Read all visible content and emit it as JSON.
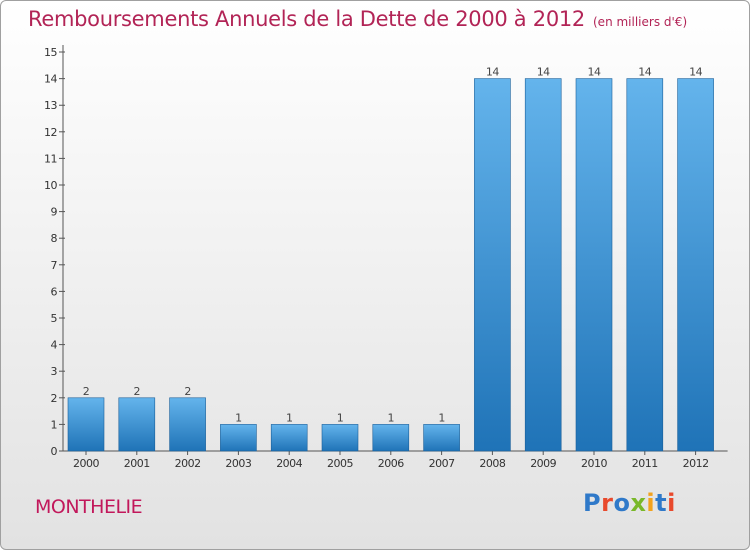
{
  "header": {
    "title": "Remboursements Annuels de la Dette de 2000 à 2012",
    "unit": "(en milliers d'€)"
  },
  "footer": {
    "commune": "MONTHELIE",
    "logo": "Proxiti"
  },
  "colors": {
    "title": "#b22456",
    "bar_top": "#64b4ec",
    "bar_bottom": "#1f73b7",
    "logo_letters": [
      "#2f79c9",
      "#e8492c",
      "#2f79c9",
      "#79b829",
      "#f2a21d",
      "#2f79c9",
      "#e8492c"
    ]
  },
  "chart_data": {
    "type": "bar",
    "categories": [
      "2000",
      "2001",
      "2002",
      "2003",
      "2004",
      "2005",
      "2006",
      "2007",
      "2008",
      "2009",
      "2010",
      "2011",
      "2012"
    ],
    "values": [
      2,
      2,
      2,
      1,
      1,
      1,
      1,
      1,
      14,
      14,
      14,
      14,
      14
    ],
    "data_labels": [
      "2",
      "2",
      "2",
      "1",
      "1",
      "1",
      "1",
      "1",
      "14",
      "14",
      "14",
      "14",
      "14"
    ],
    "yticks": [
      "0",
      "1",
      "2",
      "3",
      "4",
      "5",
      "6",
      "7",
      "8",
      "9",
      "10",
      "11",
      "12",
      "13",
      "14",
      "15"
    ],
    "ylim": [
      0,
      15
    ],
    "grid": false,
    "legend": "none"
  }
}
